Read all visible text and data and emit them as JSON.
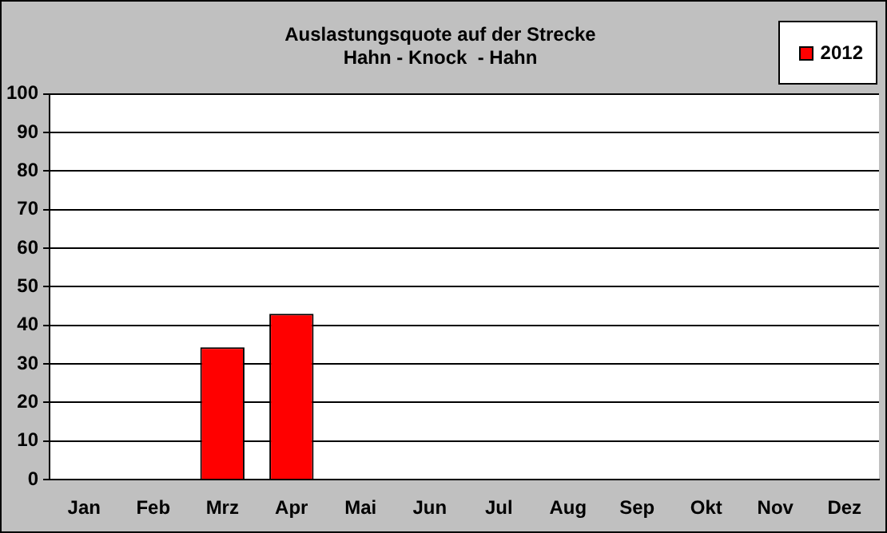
{
  "chart_data": {
    "type": "bar",
    "title": "Auslastungsquote auf der Strecke\nHahn - Knock  - Hahn",
    "categories": [
      "Jan",
      "Feb",
      "Mrz",
      "Apr",
      "Mai",
      "Jun",
      "Jul",
      "Aug",
      "Sep",
      "Okt",
      "Nov",
      "Dez"
    ],
    "series": [
      {
        "name": "2012",
        "color": "#ff0000",
        "values": [
          null,
          null,
          34.3,
          43,
          null,
          null,
          null,
          null,
          null,
          null,
          null,
          null
        ]
      }
    ],
    "ylim": [
      0,
      100
    ],
    "yticks": [
      0,
      10,
      20,
      30,
      40,
      50,
      60,
      70,
      80,
      90,
      100
    ],
    "grid": "y",
    "legend": "top right"
  }
}
